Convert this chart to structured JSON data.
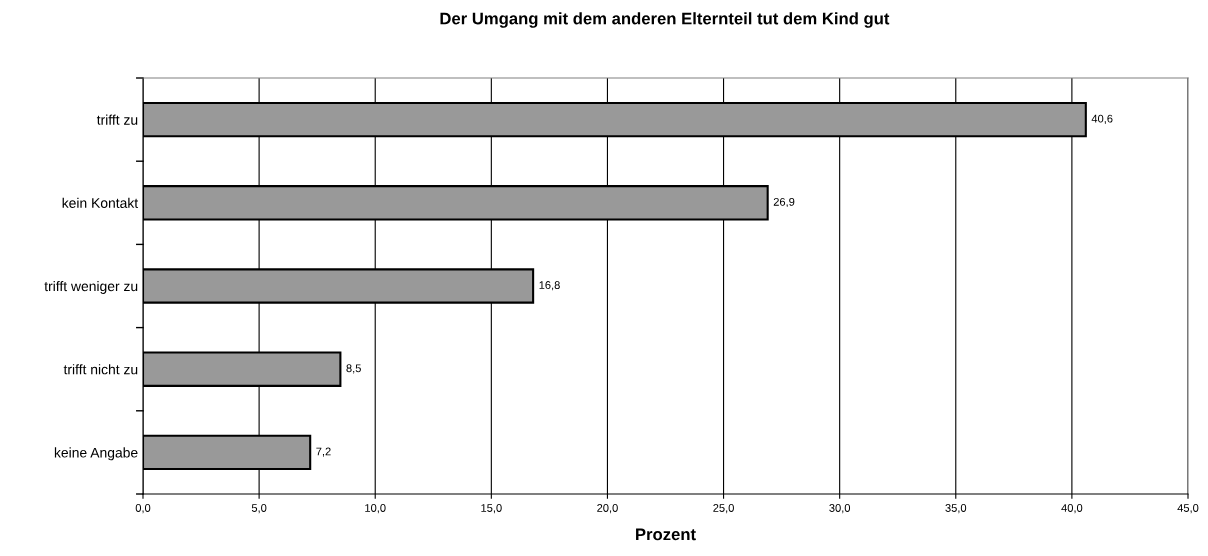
{
  "chart_data": {
    "type": "bar",
    "orientation": "horizontal",
    "title": "Der Umgang mit dem anderen Elternteil tut dem Kind gut",
    "xlabel": "Prozent",
    "categories": [
      "trifft zu",
      "kein Kontakt",
      "trifft weniger zu",
      "trifft nicht zu",
      "keine Angabe"
    ],
    "values": [
      40.6,
      26.9,
      16.8,
      8.5,
      7.2
    ],
    "value_labels": [
      "40,6",
      "26,9",
      "16,8",
      "8,5",
      "7,2"
    ],
    "color": "#999999",
    "xlim": [
      0,
      45
    ],
    "xticks": [
      {
        "value": 0,
        "label": "0,0"
      },
      {
        "value": 5,
        "label": "5,0"
      },
      {
        "value": 10,
        "label": "10,0"
      },
      {
        "value": 15,
        "label": "15,0"
      },
      {
        "value": 20,
        "label": "20,0"
      },
      {
        "value": 25,
        "label": "25,0"
      },
      {
        "value": 30,
        "label": "30,0"
      },
      {
        "value": 35,
        "label": "35,0"
      },
      {
        "value": 40,
        "label": "40,0"
      },
      {
        "value": 45,
        "label": "45,0"
      }
    ],
    "grid": "x",
    "legend": false
  }
}
